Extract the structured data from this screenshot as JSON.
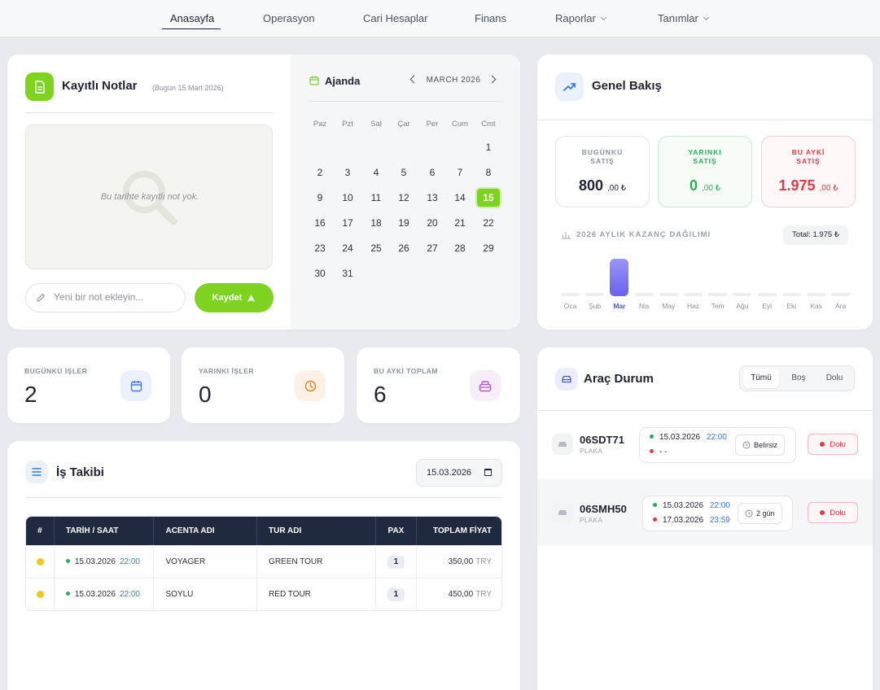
{
  "nav": {
    "items": [
      {
        "label": "Anasayfa",
        "active": true
      },
      {
        "label": "Operasyon"
      },
      {
        "label": "Cari Hesaplar"
      },
      {
        "label": "Finans"
      },
      {
        "label": "Raporlar",
        "dropdown": true
      },
      {
        "label": "Tanımlar",
        "dropdown": true
      }
    ]
  },
  "notes": {
    "title": "Kayıtlı Notlar",
    "subtitle": "(Bugün 15 Mart 2026)",
    "empty_text": "Bu tarihte kayıtlı not yok.",
    "input_placeholder": "Yeni bir not ekleyin...",
    "save_label": "Kaydet",
    "accent": "#7ed321"
  },
  "agenda": {
    "title": "Ajanda",
    "month": "MARCH 2026",
    "weekdays": [
      "Paz",
      "Pzt",
      "Sal",
      "Çar",
      "Per",
      "Cum",
      "Cmt"
    ],
    "weeks": [
      [
        "",
        "",
        "",
        "",
        "",
        "",
        "1"
      ],
      [
        "2",
        "3",
        "4",
        "5",
        "6",
        "7",
        "8"
      ],
      [
        "9",
        "10",
        "11",
        "12",
        "13",
        "14",
        "15"
      ],
      [
        "16",
        "17",
        "18",
        "19",
        "20",
        "21",
        "22"
      ],
      [
        "23",
        "24",
        "25",
        "26",
        "27",
        "28",
        "29"
      ],
      [
        "30",
        "31",
        "",
        "",
        "",
        "",
        ""
      ]
    ],
    "selected": "15"
  },
  "overview": {
    "title": "Genel Bakış",
    "stats": [
      {
        "label1": "BUGÜNKÜ",
        "label2": "SATIŞ",
        "main": "800",
        "dec": ",00 ₺",
        "color": "#1f2333",
        "label_color": "#8a90a0"
      },
      {
        "label1": "YARINKI",
        "label2": "SATIŞ",
        "main": "0",
        "dec": ",00 ₺",
        "color": "#27ae60",
        "label_color": "#27ae60"
      },
      {
        "label1": "BU AYKİ",
        "label2": "SATIŞ",
        "main": "1.975",
        "dec": ",00 ₺",
        "color": "#e23a47",
        "label_color": "#e23a47"
      }
    ],
    "chart_label": "2026 AYLIK KAZANÇ DAĞILIMI",
    "total": "Total: 1.975 ₺"
  },
  "chart_data": {
    "type": "bar",
    "categories": [
      "Oca",
      "Şub",
      "Mar",
      "Nis",
      "May",
      "Haz",
      "Tem",
      "Ağu",
      "Eyl",
      "Eki",
      "Kas",
      "Ara"
    ],
    "values": [
      0,
      0,
      1975,
      0,
      0,
      0,
      0,
      0,
      0,
      0,
      0,
      0
    ],
    "title": "2026 AYLIK KAZANÇ DAĞILIMI",
    "highlight": "Mar",
    "bar_color": "#6a61ef"
  },
  "counters": [
    {
      "label": "BUGÜNKÜ İŞLER",
      "value": "2",
      "icon": "calendar-icon",
      "bg": "#eaf1fb",
      "fg": "#4a7bd0"
    },
    {
      "label": "YARINKI İŞLER",
      "value": "0",
      "icon": "clock-icon",
      "bg": "#fdf1e6",
      "fg": "#e67e22"
    },
    {
      "label": "BU AYKİ TOPLAM",
      "value": "6",
      "icon": "box-icon",
      "bg": "#f8eefa",
      "fg": "#b057c8"
    }
  ],
  "jobs": {
    "title": "İş Takibi",
    "date": "15.03.2026",
    "headers": [
      "#",
      "TARİH / SAAT",
      "ACENTA ADI",
      "TUR ADI",
      "PAX",
      "TOPLAM FİYAT"
    ],
    "rows": [
      {
        "date": "15.03.2026",
        "time": "22:00",
        "agency": "VOYAGER",
        "tour": "GREEN TOUR",
        "pax": "1",
        "price": "350,00",
        "currency": "TRY"
      },
      {
        "date": "15.03.2026",
        "time": "22:00",
        "agency": "SOYLU",
        "tour": "RED TOUR",
        "pax": "1",
        "price": "450,00",
        "currency": "TRY"
      }
    ]
  },
  "vehicles": {
    "title": "Araç Durum",
    "filters": [
      "Tümü",
      "Boş",
      "Dolu"
    ],
    "active_filter": "Tümü",
    "plate_label": "PLAKA",
    "rows": [
      {
        "plate": "06SDT71",
        "start_date": "15.03.2026",
        "start_time": "22:00",
        "end_date": "- -",
        "end_time": "",
        "duration": "Belirsiz",
        "status": "Dolu"
      },
      {
        "plate": "06SMH50",
        "start_date": "15.03.2026",
        "start_time": "22:00",
        "end_date": "17.03.2026",
        "end_time": "23:59",
        "duration": "2 gün",
        "status": "Dolu"
      }
    ]
  }
}
